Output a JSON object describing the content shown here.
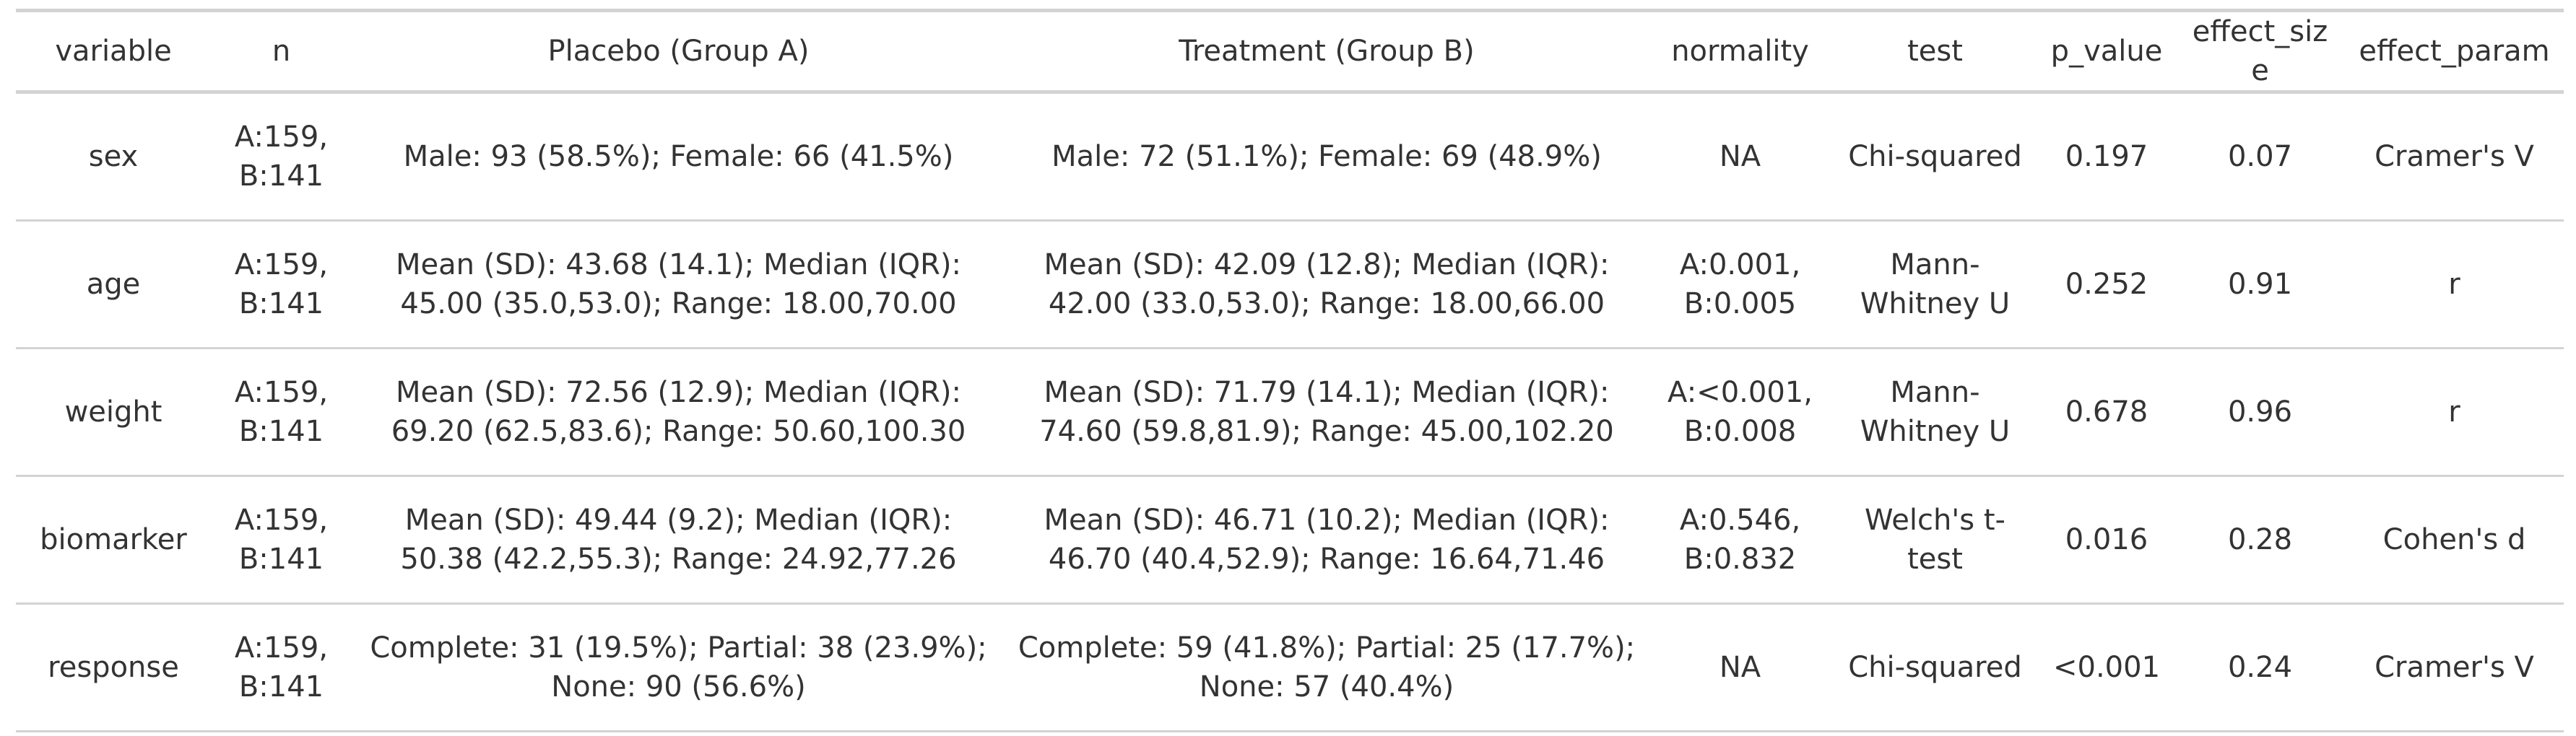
{
  "table": {
    "header": [
      "variable",
      "n",
      "Placebo (Group A)",
      "Treatment (Group B)",
      "normality",
      "test",
      "p_value",
      "effect_size",
      "effect_param"
    ],
    "rows": [
      [
        "sex",
        "A:159, B:141",
        "Male: 93 (58.5%); Female: 66 (41.5%)",
        "Male: 72 (51.1%); Female: 69 (48.9%)",
        "NA",
        "Chi-squared",
        "0.197",
        "0.07",
        "Cramer's V"
      ],
      [
        "age",
        "A:159, B:141",
        "Mean (SD): 43.68 (14.1); Median (IQR): 45.00 (35.0,53.0); Range: 18.00,70.00",
        "Mean (SD): 42.09 (12.8); Median (IQR): 42.00 (33.0,53.0); Range: 18.00,66.00",
        "A:0.001, B:0.005",
        "Mann-Whitney U",
        "0.252",
        "0.91",
        "r"
      ],
      [
        "weight",
        "A:159, B:141",
        "Mean (SD): 72.56 (12.9); Median (IQR): 69.20 (62.5,83.6); Range: 50.60,100.30",
        "Mean (SD): 71.79 (14.1); Median (IQR): 74.60 (59.8,81.9); Range: 45.00,102.20",
        "A:<0.001, B:0.008",
        "Mann-Whitney U",
        "0.678",
        "0.96",
        "r"
      ],
      [
        "biomarker",
        "A:159, B:141",
        "Mean (SD): 49.44 (9.2); Median (IQR): 50.38 (42.2,55.3); Range: 24.92,77.26",
        "Mean (SD): 46.71 (10.2); Median (IQR): 46.70 (40.4,52.9); Range: 16.64,71.46",
        "A:0.546, B:0.832",
        "Welch's t-test",
        "0.016",
        "0.28",
        "Cohen's d"
      ],
      [
        "response",
        "A:159, B:141",
        "Complete: 31 (19.5%); Partial: 38 (23.9%); None: 90 (56.6%)",
        "Complete: 59 (41.8%); Partial: 25 (17.7%); None: 57 (40.4%)",
        "NA",
        "Chi-squared",
        "<0.001",
        "0.24",
        "Cramer's V"
      ]
    ]
  }
}
